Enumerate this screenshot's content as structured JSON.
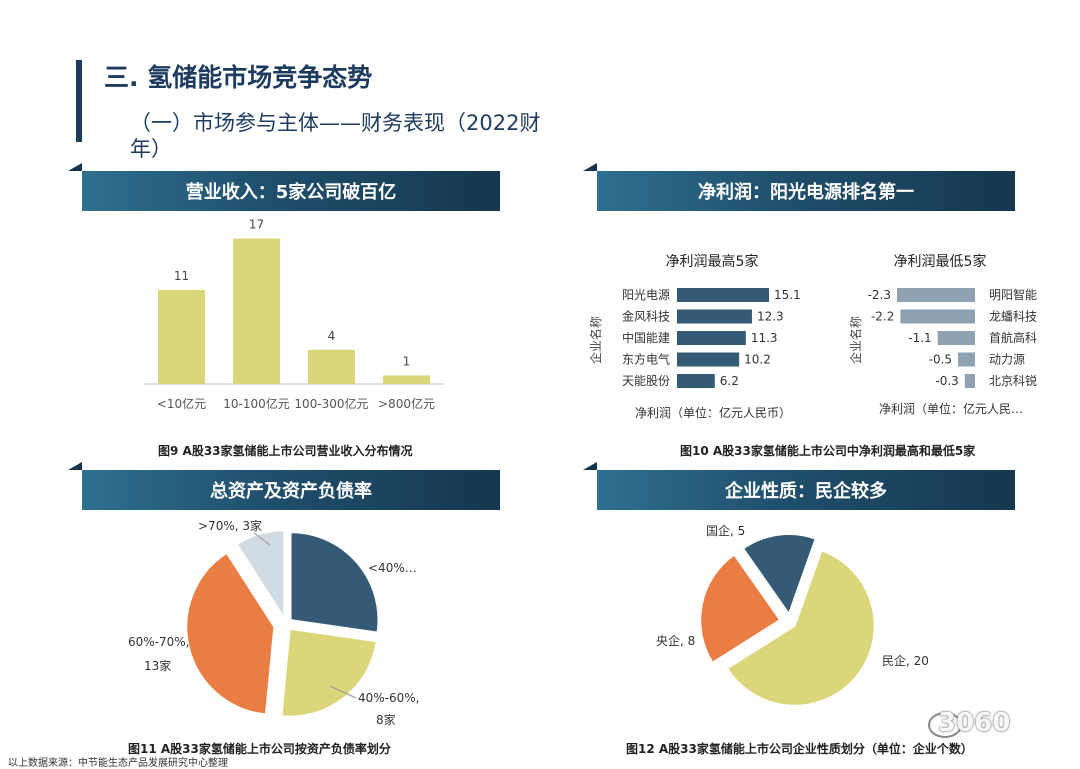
{
  "header": {
    "title": "三. 氢储能市场竞争态势",
    "subtitle": "（一）市场参与主体——财务表现（2022财年）"
  },
  "banners": {
    "revenue": "营业收入：5家公司破百亿",
    "profit": "净利润：阳光电源排名第一",
    "assets": "总资产及资产负债率",
    "nature": "企业性质：民企较多"
  },
  "captions": {
    "fig9": "图9  A股33家氢储能上市公司营业收入分布情况",
    "fig10": "图10  A股33家氢储能上市公司中净利润最高和最低5家",
    "fig11": "图11  A股33家氢储能上市公司按资产负债率划分",
    "fig12": "图12  A股33家氢储能上市公司企业性质划分（单位：企业个数）"
  },
  "source": "以上数据来源：中节能生态产品发展研究中心整理",
  "watermark": "3060",
  "colors": {
    "navy": "#1d3a5f",
    "olive": "#dcd67a",
    "dark_teal": "#355a75",
    "steel": "#8ea2b3",
    "orange": "#e97d43",
    "light_gray": "#d0dbe3"
  },
  "chart_data": [
    {
      "type": "bar",
      "categories": [
        "<10亿元",
        "10-100亿元",
        "100-300亿元",
        ">800亿元"
      ],
      "values": [
        11,
        17,
        4,
        1
      ],
      "ylim": [
        0,
        18
      ]
    },
    {
      "type": "bar",
      "orientation": "horizontal",
      "title": "净利润最高5家",
      "ylabel": "企业名称",
      "xlabel": "净利润（单位：亿元人民币）",
      "categories": [
        "阳光电源",
        "金风科技",
        "中国能建",
        "东方电气",
        "天能股份"
      ],
      "values": [
        15.1,
        12.3,
        11.3,
        10.2,
        6.2
      ],
      "xlim": [
        0,
        16
      ]
    },
    {
      "type": "bar",
      "orientation": "horizontal",
      "title": "净利润最低5家",
      "ylabel": "企业名称",
      "xlabel": "净利润（单位：亿元人民…",
      "categories": [
        "明阳智能",
        "龙蟠科技",
        "首航高科",
        "动力源",
        "北京科锐"
      ],
      "values": [
        -2.3,
        -2.2,
        -1.1,
        -0.5,
        -0.3
      ],
      "xlim": [
        -2.4,
        0
      ]
    },
    {
      "type": "pie",
      "slices": [
        {
          "name": "<40%",
          "value": 9,
          "label": "<40%…"
        },
        {
          "name": "40%-60%",
          "value": 8,
          "label_lines": [
            "40%-60%,",
            "8家"
          ]
        },
        {
          "name": "60%-70%",
          "value": 13,
          "label_lines": [
            "60%-70%,",
            "13家"
          ]
        },
        {
          "name": ">70%",
          "value": 3,
          "label": ">70%, 3家"
        }
      ]
    },
    {
      "type": "pie",
      "slices": [
        {
          "name": "国企",
          "value": 5,
          "label": "国企, 5"
        },
        {
          "name": "民企",
          "value": 20,
          "label": "民企, 20"
        },
        {
          "name": "央企",
          "value": 8,
          "label": "央企, 8"
        }
      ]
    }
  ]
}
